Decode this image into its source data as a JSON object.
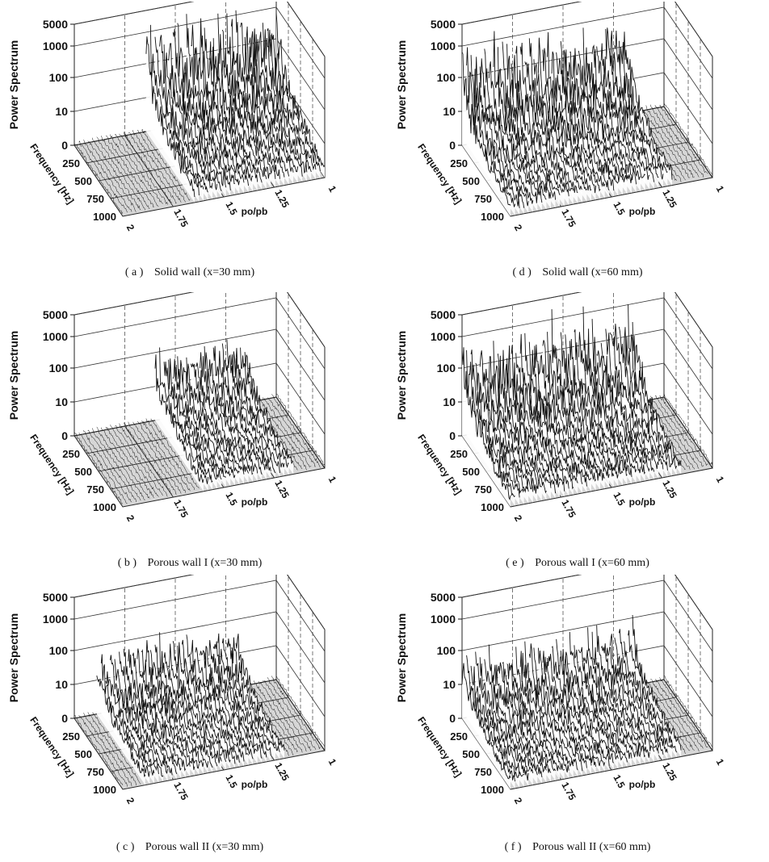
{
  "chart_data": [
    {
      "type": "3d-waterfall",
      "panel": "a",
      "caption_letter": "( a )",
      "caption_text": "Solid wall",
      "caption_param": "(x=30 mm)",
      "ylabel": "Power Spectrum",
      "flabel": "Frequency [Hz]",
      "plabel": "po/pb",
      "z_ticks": [
        "5000",
        "1000",
        "100",
        "10",
        "0"
      ],
      "f_ticks": [
        "250",
        "500",
        "750",
        "1000"
      ],
      "p_ticks": [
        "2",
        "1.75",
        "1.5",
        "1.25",
        "1"
      ],
      "active_range": [
        1.0,
        1.65
      ],
      "peak_level": 0.85
    },
    {
      "type": "3d-waterfall",
      "panel": "b",
      "caption_letter": "( b )",
      "caption_text": "Porous wall I",
      "caption_param": "(x=30 mm)",
      "ylabel": "Power Spectrum",
      "flabel": "Frequency [Hz]",
      "plabel": "po/pb",
      "z_ticks": [
        "5000",
        "1000",
        "100",
        "10",
        "0"
      ],
      "f_ticks": [
        "250",
        "500",
        "750",
        "1000"
      ],
      "p_ticks": [
        "2",
        "1.75",
        "1.5",
        "1.25",
        "1"
      ],
      "active_range": [
        1.15,
        1.62
      ],
      "peak_level": 0.55
    },
    {
      "type": "3d-waterfall",
      "panel": "c",
      "caption_letter": "( c )",
      "caption_text": "Porous wall II",
      "caption_param": "(x=30 mm)",
      "ylabel": "Power Spectrum",
      "flabel": "Frequency [Hz]",
      "plabel": "po/pb",
      "z_ticks": [
        "5000",
        "1000",
        "100",
        "10",
        "0"
      ],
      "f_ticks": [
        "250",
        "500",
        "750",
        "1000"
      ],
      "p_ticks": [
        "2",
        "1.75",
        "1.5",
        "1.25",
        "1"
      ],
      "active_range": [
        1.2,
        1.9
      ],
      "peak_level": 0.5
    },
    {
      "type": "3d-waterfall",
      "panel": "d",
      "caption_letter": "( d )",
      "caption_text": "Solid wall",
      "caption_param": "(x=60 mm)",
      "ylabel": "Power Spectrum",
      "flabel": "Frequency [Hz]",
      "plabel": "po/pb",
      "z_ticks": [
        "5000",
        "1000",
        "100",
        "10",
        "0"
      ],
      "f_ticks": [
        "250",
        "500",
        "750",
        "1000"
      ],
      "p_ticks": [
        "2",
        "1.75",
        "1.5",
        "1.25",
        "1"
      ],
      "active_range": [
        1.2,
        2.0
      ],
      "peak_level": 0.8
    },
    {
      "type": "3d-waterfall",
      "panel": "e",
      "caption_letter": "( e )",
      "caption_text": "Porous wall I",
      "caption_param": "(x=60 mm)",
      "ylabel": "Power Spectrum",
      "flabel": "Frequency [Hz]",
      "plabel": "po/pb",
      "z_ticks": [
        "5000",
        "1000",
        "100",
        "10",
        "0"
      ],
      "f_ticks": [
        "250",
        "500",
        "750",
        "1000"
      ],
      "p_ticks": [
        "2",
        "1.75",
        "1.5",
        "1.25",
        "1"
      ],
      "active_range": [
        1.15,
        2.0
      ],
      "peak_level": 0.75
    },
    {
      "type": "3d-waterfall",
      "panel": "f",
      "caption_letter": "( f )",
      "caption_text": "Porous wall II",
      "caption_param": "(x=60 mm)",
      "ylabel": "Power Spectrum",
      "flabel": "Frequency [Hz]",
      "plabel": "po/pb",
      "z_ticks": [
        "5000",
        "1000",
        "100",
        "10",
        "0"
      ],
      "f_ticks": [
        "250",
        "500",
        "750",
        "1000"
      ],
      "p_ticks": [
        "2",
        "1.75",
        "1.5",
        "1.25",
        "1"
      ],
      "active_range": [
        1.15,
        2.0
      ],
      "peak_level": 0.5
    }
  ]
}
